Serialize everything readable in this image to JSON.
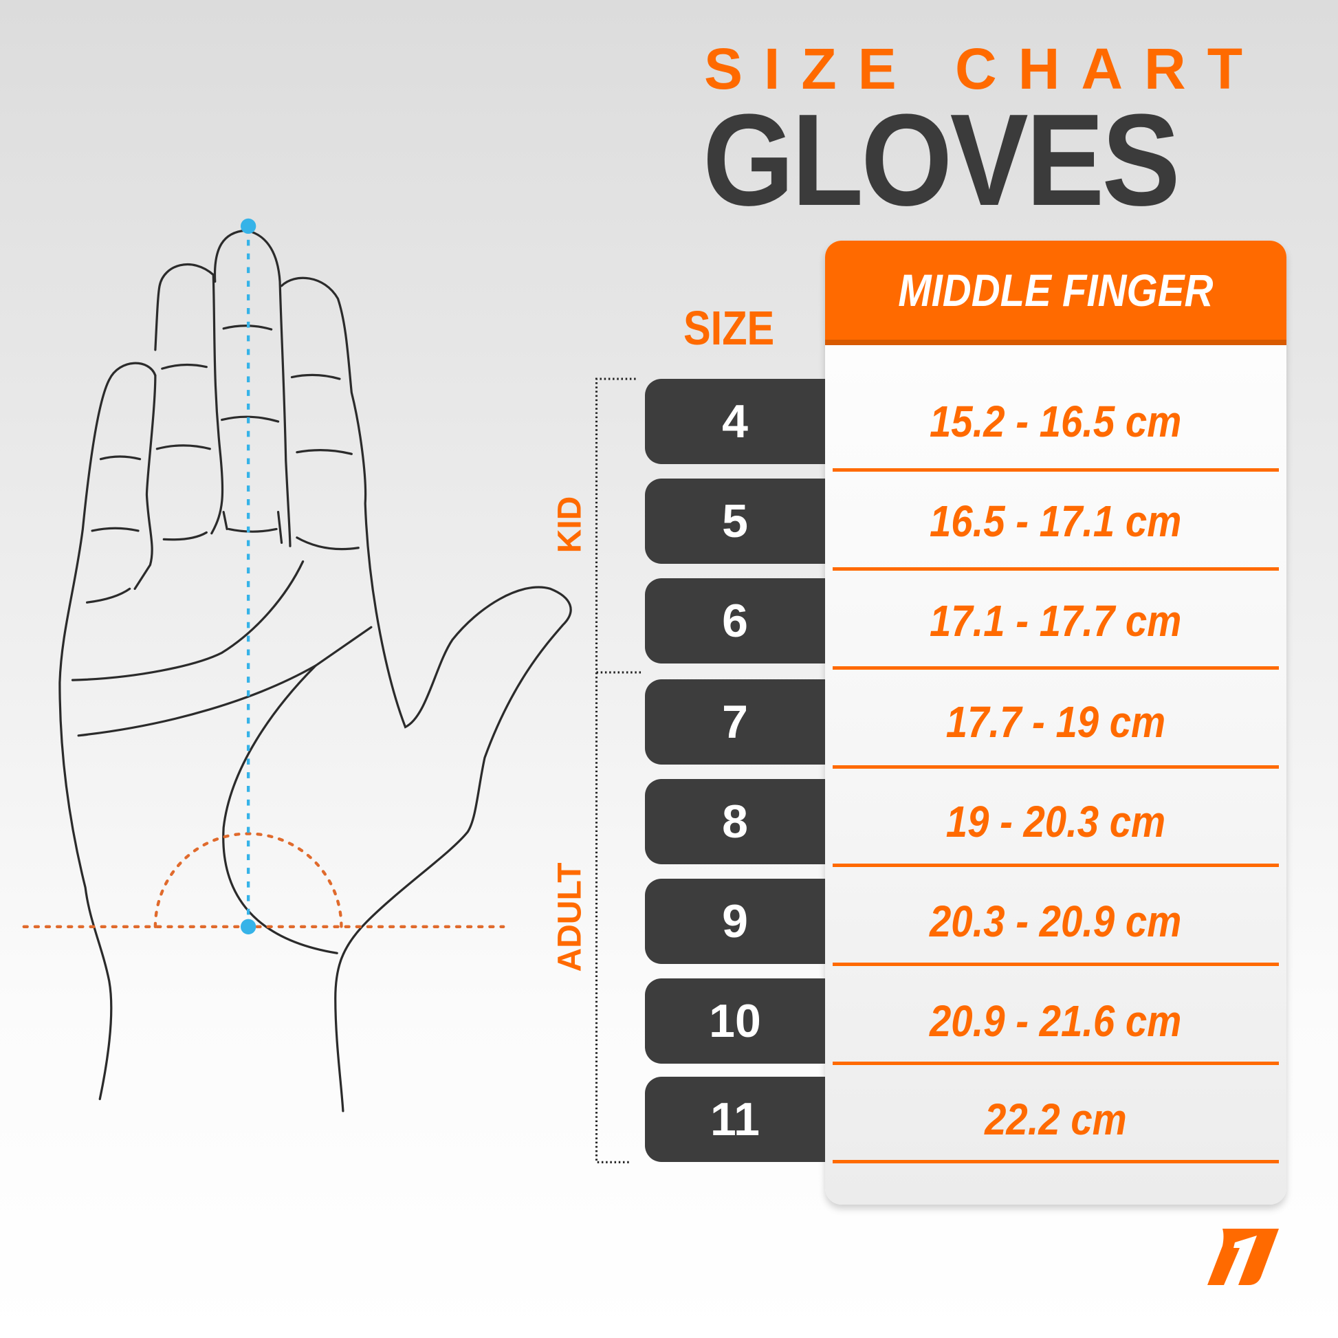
{
  "header": {
    "subtitle": "SIZE CHART",
    "title": "GLOVES"
  },
  "table": {
    "size_column_label": "SIZE",
    "measure_column_label": "MIDDLE FINGER",
    "groups": [
      {
        "label": "KID"
      },
      {
        "label": "ADULT"
      }
    ],
    "rows": [
      {
        "size": "4",
        "range": "15.2 - 16.5 cm",
        "group": "KID"
      },
      {
        "size": "5",
        "range": "16.5 - 17.1 cm",
        "group": "KID"
      },
      {
        "size": "6",
        "range": "17.1 - 17.7 cm",
        "group": "KID"
      },
      {
        "size": "7",
        "range": "17.7 - 19 cm",
        "group": "ADULT"
      },
      {
        "size": "8",
        "range": "19 - 20.3 cm",
        "group": "ADULT"
      },
      {
        "size": "9",
        "range": "20.3 - 20.9 cm",
        "group": "ADULT"
      },
      {
        "size": "10",
        "range": "20.9 - 21.6 cm",
        "group": "ADULT"
      },
      {
        "size": "11",
        "range": "22.2 cm",
        "group": "ADULT"
      }
    ]
  },
  "illustration": {
    "subject": "hand-outline",
    "measure_line_icon": "dotted-measure-line"
  },
  "logo": {
    "icon": "brand-number-one-logo"
  },
  "colors": {
    "accent": "#ff6a00",
    "dark": "#3d3d3d",
    "measure": "#36b3e8"
  }
}
